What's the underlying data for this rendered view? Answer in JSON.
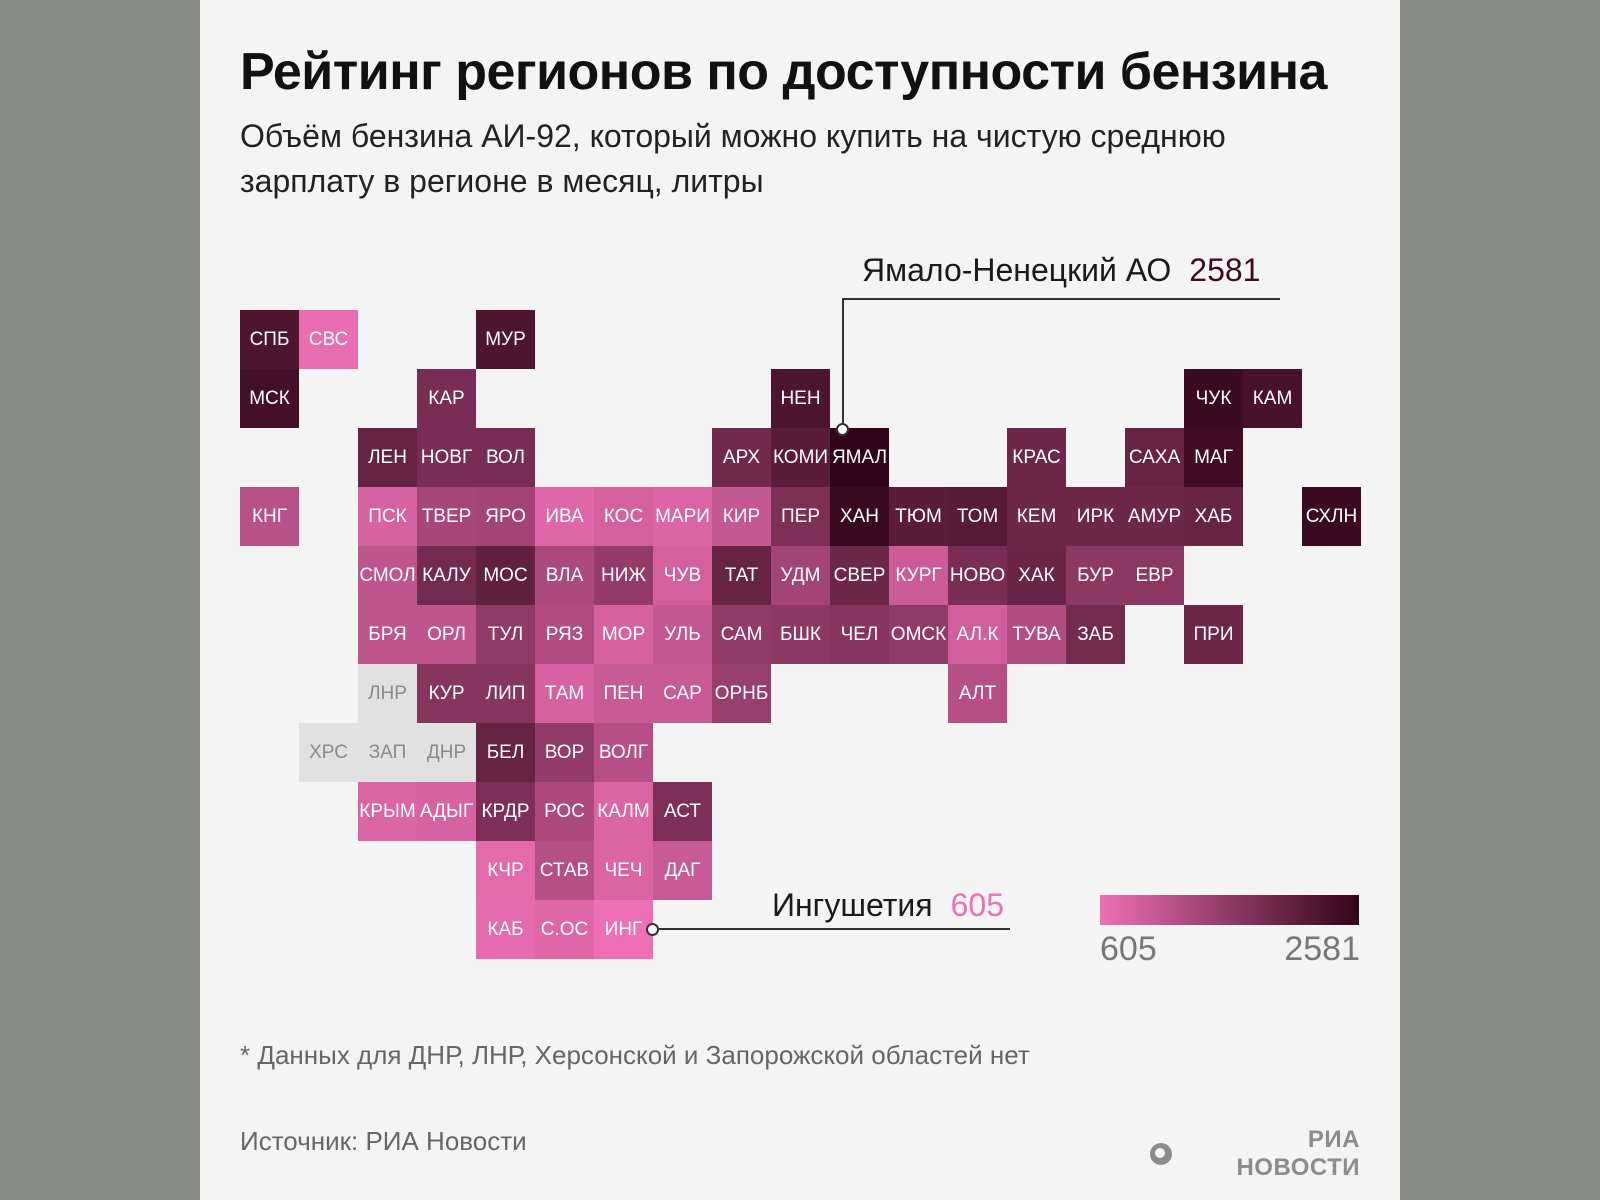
{
  "title": "Рейтинг регионов по доступности бензина",
  "subtitle": "Объём бензина АИ-92, который можно купить на чистую среднюю зарплату в регионе в месяц, литры",
  "legend": {
    "min": "605",
    "max": "2581",
    "color_min": "#ee6fb4",
    "color_max": "#310519",
    "nodata_color": "#e1e1e1"
  },
  "callouts": {
    "max": {
      "name": "Ямало-Ненецкий АО",
      "value": "2581",
      "color": "#3d0a22"
    },
    "min": {
      "name": "Ингушетия",
      "value": "605",
      "color": "#ee6fb4"
    }
  },
  "regions": [
    {
      "code": "СПБ",
      "row": 0,
      "col": 0,
      "level": 0.85
    },
    {
      "code": "СВС",
      "row": 0,
      "col": 1,
      "level": 0.02
    },
    {
      "code": "МУР",
      "row": 0,
      "col": 4,
      "level": 0.85
    },
    {
      "code": "МСК",
      "row": 1,
      "col": 0,
      "level": 0.9
    },
    {
      "code": "КАР",
      "row": 1,
      "col": 3,
      "level": 0.62
    },
    {
      "code": "НЕН",
      "row": 1,
      "col": 9,
      "level": 0.85
    },
    {
      "code": "ЧУК",
      "row": 1,
      "col": 16,
      "level": 0.95
    },
    {
      "code": "КАМ",
      "row": 1,
      "col": 17,
      "level": 0.88
    },
    {
      "code": "ЛЕН",
      "row": 2,
      "col": 2,
      "level": 0.72
    },
    {
      "code": "НОВГ",
      "row": 2,
      "col": 3,
      "level": 0.62
    },
    {
      "code": "ВОЛ",
      "row": 2,
      "col": 4,
      "level": 0.62
    },
    {
      "code": "АРХ",
      "row": 2,
      "col": 8,
      "level": 0.66
    },
    {
      "code": "КОМИ",
      "row": 2,
      "col": 9,
      "level": 0.78
    },
    {
      "code": "ЯМАЛ",
      "row": 2,
      "col": 10,
      "level": 1.0
    },
    {
      "code": "КРАС",
      "row": 2,
      "col": 13,
      "level": 0.68
    },
    {
      "code": "САХА",
      "row": 2,
      "col": 15,
      "level": 0.72
    },
    {
      "code": "МАГ",
      "row": 2,
      "col": 16,
      "level": 0.92
    },
    {
      "code": "КНГ",
      "row": 3,
      "col": 0,
      "level": 0.28
    },
    {
      "code": "ПСК",
      "row": 3,
      "col": 2,
      "level": 0.12
    },
    {
      "code": "ТВЕР",
      "row": 3,
      "col": 3,
      "level": 0.38
    },
    {
      "code": "ЯРО",
      "row": 3,
      "col": 4,
      "level": 0.4
    },
    {
      "code": "ИВА",
      "row": 3,
      "col": 5,
      "level": 0.08
    },
    {
      "code": "КОС",
      "row": 3,
      "col": 6,
      "level": 0.14
    },
    {
      "code": "МАРИ",
      "row": 3,
      "col": 7,
      "level": 0.1
    },
    {
      "code": "КИР",
      "row": 3,
      "col": 8,
      "level": 0.22
    },
    {
      "code": "ПЕР",
      "row": 3,
      "col": 9,
      "level": 0.6
    },
    {
      "code": "ХАН",
      "row": 3,
      "col": 10,
      "level": 0.96
    },
    {
      "code": "ТЮМ",
      "row": 3,
      "col": 11,
      "level": 0.78
    },
    {
      "code": "ТОМ",
      "row": 3,
      "col": 12,
      "level": 0.8
    },
    {
      "code": "КЕМ",
      "row": 3,
      "col": 13,
      "level": 0.68
    },
    {
      "code": "ИРК",
      "row": 3,
      "col": 14,
      "level": 0.68
    },
    {
      "code": "АМУР",
      "row": 3,
      "col": 15,
      "level": 0.68
    },
    {
      "code": "ХАБ",
      "row": 3,
      "col": 16,
      "level": 0.72
    },
    {
      "code": "СХЛН",
      "row": 3,
      "col": 18,
      "level": 0.95
    },
    {
      "code": "СМОЛ",
      "row": 4,
      "col": 2,
      "level": 0.25
    },
    {
      "code": "КАЛУ",
      "row": 4,
      "col": 3,
      "level": 0.65
    },
    {
      "code": "МОС",
      "row": 4,
      "col": 4,
      "level": 0.75
    },
    {
      "code": "ВЛА",
      "row": 4,
      "col": 5,
      "level": 0.35
    },
    {
      "code": "НИЖ",
      "row": 4,
      "col": 6,
      "level": 0.48
    },
    {
      "code": "ЧУВ",
      "row": 4,
      "col": 7,
      "level": 0.14
    },
    {
      "code": "ТАТ",
      "row": 4,
      "col": 8,
      "level": 0.72
    },
    {
      "code": "УДМ",
      "row": 4,
      "col": 9,
      "level": 0.4
    },
    {
      "code": "СВЕР",
      "row": 4,
      "col": 10,
      "level": 0.68
    },
    {
      "code": "КУРГ",
      "row": 4,
      "col": 11,
      "level": 0.18
    },
    {
      "code": "НОВО",
      "row": 4,
      "col": 12,
      "level": 0.62
    },
    {
      "code": "ХАК",
      "row": 4,
      "col": 13,
      "level": 0.7
    },
    {
      "code": "БУР",
      "row": 4,
      "col": 14,
      "level": 0.52
    },
    {
      "code": "ЕВР",
      "row": 4,
      "col": 15,
      "level": 0.52
    },
    {
      "code": "БРЯ",
      "row": 5,
      "col": 2,
      "level": 0.25
    },
    {
      "code": "ОРЛ",
      "row": 5,
      "col": 3,
      "level": 0.25
    },
    {
      "code": "ТУЛ",
      "row": 5,
      "col": 4,
      "level": 0.5
    },
    {
      "code": "РЯЗ",
      "row": 5,
      "col": 5,
      "level": 0.32
    },
    {
      "code": "МОР",
      "row": 5,
      "col": 6,
      "level": 0.12
    },
    {
      "code": "УЛЬ",
      "row": 5,
      "col": 7,
      "level": 0.22
    },
    {
      "code": "САМ",
      "row": 5,
      "col": 8,
      "level": 0.5
    },
    {
      "code": "БШК",
      "row": 5,
      "col": 9,
      "level": 0.52
    },
    {
      "code": "ЧЕЛ",
      "row": 5,
      "col": 10,
      "level": 0.55
    },
    {
      "code": "ОМСК",
      "row": 5,
      "col": 11,
      "level": 0.5
    },
    {
      "code": "АЛ.К",
      "row": 5,
      "col": 12,
      "level": 0.15
    },
    {
      "code": "ТУВА",
      "row": 5,
      "col": 13,
      "level": 0.32
    },
    {
      "code": "ЗАБ",
      "row": 5,
      "col": 14,
      "level": 0.65
    },
    {
      "code": "ПРИ",
      "row": 5,
      "col": 16,
      "level": 0.68
    },
    {
      "code": "ЛНР",
      "row": 6,
      "col": 2,
      "nodata": true
    },
    {
      "code": "КУР",
      "row": 6,
      "col": 3,
      "level": 0.55
    },
    {
      "code": "ЛИП",
      "row": 6,
      "col": 4,
      "level": 0.55
    },
    {
      "code": "ТАМ",
      "row": 6,
      "col": 5,
      "level": 0.12
    },
    {
      "code": "ПЕН",
      "row": 6,
      "col": 6,
      "level": 0.2
    },
    {
      "code": "САР",
      "row": 6,
      "col": 7,
      "level": 0.2
    },
    {
      "code": "ОРНБ",
      "row": 6,
      "col": 8,
      "level": 0.45
    },
    {
      "code": "АЛТ",
      "row": 6,
      "col": 12,
      "level": 0.3
    },
    {
      "code": "ХРС",
      "row": 7,
      "col": 1,
      "nodata": true
    },
    {
      "code": "ЗАП",
      "row": 7,
      "col": 2,
      "nodata": true
    },
    {
      "code": "ДНР",
      "row": 7,
      "col": 3,
      "nodata": true
    },
    {
      "code": "БЕЛ",
      "row": 7,
      "col": 4,
      "level": 0.72
    },
    {
      "code": "ВОР",
      "row": 7,
      "col": 5,
      "level": 0.48
    },
    {
      "code": "ВОЛГ",
      "row": 7,
      "col": 6,
      "level": 0.3
    },
    {
      "code": "КРЫМ",
      "row": 8,
      "col": 2,
      "level": 0.1
    },
    {
      "code": "АДЫГ",
      "row": 8,
      "col": 3,
      "level": 0.12
    },
    {
      "code": "КРДР",
      "row": 8,
      "col": 4,
      "level": 0.6
    },
    {
      "code": "РОС",
      "row": 8,
      "col": 5,
      "level": 0.35
    },
    {
      "code": "КАЛМ",
      "row": 8,
      "col": 6,
      "level": 0.1
    },
    {
      "code": "АСТ",
      "row": 8,
      "col": 7,
      "level": 0.6
    },
    {
      "code": "КЧР",
      "row": 9,
      "col": 4,
      "level": 0.05
    },
    {
      "code": "СТАВ",
      "row": 9,
      "col": 5,
      "level": 0.3
    },
    {
      "code": "ЧЕЧ",
      "row": 9,
      "col": 6,
      "level": 0.1
    },
    {
      "code": "ДАГ",
      "row": 9,
      "col": 7,
      "level": 0.2
    },
    {
      "code": "КАБ",
      "row": 10,
      "col": 4,
      "level": 0.04
    },
    {
      "code": "С.ОС",
      "row": 10,
      "col": 5,
      "level": 0.08
    },
    {
      "code": "ИНГ",
      "row": 10,
      "col": 6,
      "level": 0.0
    }
  ],
  "footnote": "* Данных для ДНР, ЛНР, Херсонской и Запорожской областей нет",
  "source": "Источник: РИА Новости",
  "logo_text": "РИА НОВОСТИ"
}
